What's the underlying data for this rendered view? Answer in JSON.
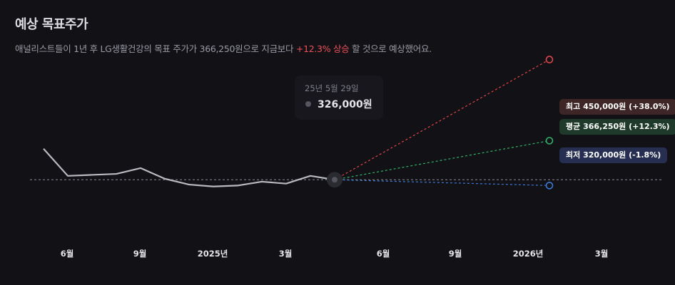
{
  "header": {
    "title": "예상 목표주가",
    "subtitle_pre": "애널리스트들이 1년 후 LG생활건강의 목표 주가가 366,250원으로 지금보다 ",
    "subtitle_highlight": "+12.3% 상승",
    "subtitle_post": " 할 것으로 예상했어요."
  },
  "tooltip": {
    "date": "25년 5월 29일",
    "value": "326,000원"
  },
  "badges": {
    "high": "최고 450,000원 (+38.0%)",
    "avg": "평균 366,250원 (+12.3%)",
    "low": "최저 320,000원 (-1.8%)"
  },
  "colors": {
    "price_line": "#b9b9c0",
    "high": "#e0454b",
    "avg": "#2fb36a",
    "low": "#3a7bd5",
    "axis_text": "#e6e6ea"
  },
  "chart_data": {
    "type": "line",
    "x_ticks": [
      "6월",
      "9월",
      "2025년",
      "3월",
      "6월",
      "9월",
      "2026년",
      "3월"
    ],
    "series": [
      {
        "values": [
          358000,
          330000,
          331000,
          332000,
          338000,
          327000,
          321000,
          319000,
          320000,
          324000,
          322000,
          330000,
          326000
        ]
      }
    ],
    "current_price": 326000,
    "forecast": {
      "high": 450000,
      "average": 366250,
      "low": 320000
    },
    "ylim": [
      260000,
      460000
    ]
  }
}
